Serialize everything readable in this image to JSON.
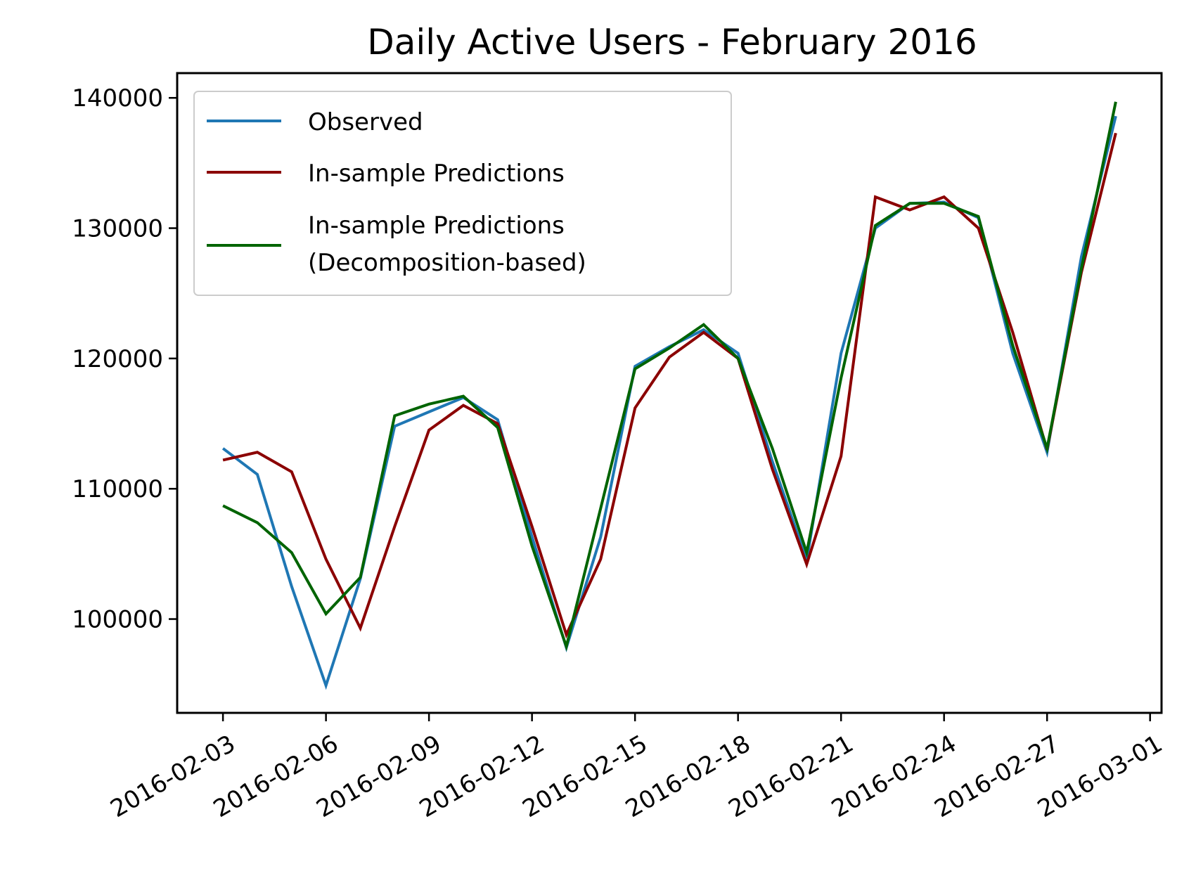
{
  "chart_data": {
    "type": "line",
    "title": "Daily Active Users - February 2016",
    "xlabel": "",
    "ylabel": "",
    "x_start": "2016-02-03",
    "x": [
      "2016-02-03",
      "2016-02-04",
      "2016-02-05",
      "2016-02-06",
      "2016-02-07",
      "2016-02-08",
      "2016-02-09",
      "2016-02-10",
      "2016-02-11",
      "2016-02-12",
      "2016-02-13",
      "2016-02-14",
      "2016-02-15",
      "2016-02-16",
      "2016-02-17",
      "2016-02-18",
      "2016-02-19",
      "2016-02-20",
      "2016-02-21",
      "2016-02-22",
      "2016-02-23",
      "2016-02-24",
      "2016-02-25",
      "2016-02-26",
      "2016-02-27",
      "2016-02-28",
      "2016-02-29"
    ],
    "x_ticks": [
      "2016-02-03",
      "2016-02-06",
      "2016-02-09",
      "2016-02-12",
      "2016-02-15",
      "2016-02-18",
      "2016-02-21",
      "2016-02-24",
      "2016-02-27",
      "2016-03-01"
    ],
    "y_ticks": [
      "100000",
      "110000",
      "120000",
      "130000",
      "140000"
    ],
    "xlim": [
      "2016-02-01T16:00",
      "2016-03-01T08:00"
    ],
    "ylim": [
      92800,
      141900
    ],
    "grid": false,
    "legend_position": "upper-left",
    "series": [
      {
        "name": "Observed",
        "color": "#1f77b4",
        "values": [
          113100,
          111100,
          102500,
          94900,
          103100,
          114800,
          115900,
          117000,
          115300,
          106300,
          97800,
          106300,
          119400,
          120900,
          122200,
          120400,
          112100,
          104500,
          120400,
          130000,
          131900,
          132000,
          130800,
          120400,
          112800,
          127800,
          138600
        ]
      },
      {
        "name": "In-sample Predictions",
        "color": "#8b0000",
        "values": [
          112200,
          112800,
          111300,
          104600,
          99300,
          107100,
          114500,
          116400,
          115000,
          107100,
          98800,
          104600,
          116200,
          120100,
          122000,
          120000,
          111500,
          104200,
          112500,
          132400,
          131400,
          132400,
          130000,
          122000,
          113000,
          126600,
          137300
        ]
      },
      {
        "name": "In-sample Predictions\n(Decomposition-based)",
        "name_lines": [
          "In-sample Predictions",
          "(Decomposition-based)"
        ],
        "color": "#006400",
        "values": [
          108700,
          107400,
          105100,
          100400,
          103200,
          115600,
          116500,
          117100,
          114700,
          105600,
          97900,
          108500,
          119200,
          120800,
          122600,
          120000,
          113100,
          105100,
          118500,
          130200,
          131900,
          131900,
          130900,
          121000,
          113100,
          126900,
          139700
        ]
      }
    ]
  }
}
